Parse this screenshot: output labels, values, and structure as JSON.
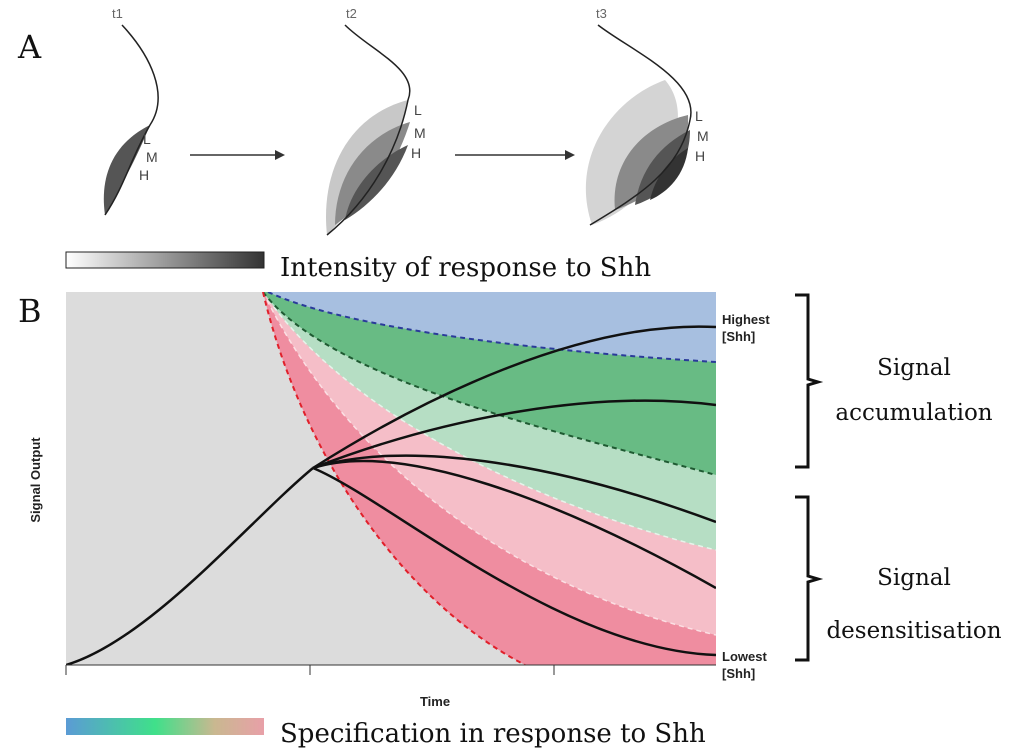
{
  "panel_a": {
    "label": "A",
    "frames": [
      {
        "time": "t1",
        "levels": [
          "L",
          "M",
          "H"
        ]
      },
      {
        "time": "t2",
        "levels": [
          "L",
          "M",
          "H"
        ]
      },
      {
        "time": "t3",
        "levels": [
          "L",
          "M",
          "H"
        ]
      }
    ],
    "legend": "Intensity of response to Shh"
  },
  "panel_b": {
    "label": "B",
    "y_axis_label": "Signal Output",
    "x_axis_label": "Time",
    "highest": [
      "Highest",
      "[Shh]"
    ],
    "lowest": [
      "Lowest",
      "[Shh]"
    ],
    "groups": [
      {
        "lines": [
          "Signal",
          "accumulation"
        ]
      },
      {
        "lines": [
          "Signal",
          "desensitisation"
        ]
      }
    ],
    "legend": "Specification in response to Shh"
  }
}
